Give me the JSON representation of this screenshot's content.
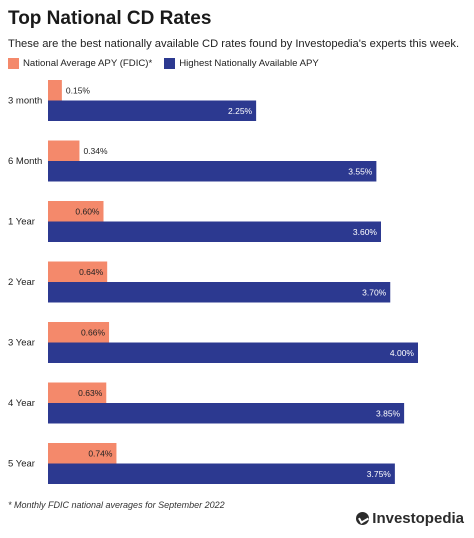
{
  "header": {
    "title": "Top National CD Rates",
    "subtitle": "These are the best nationally available CD rates found by Investopedia's experts this week."
  },
  "legend": {
    "items": [
      {
        "label": "National Average APY (FDIC)*",
        "color": "#f4896b"
      },
      {
        "label": "Highest Nationally Available APY",
        "color": "#2c3990"
      }
    ]
  },
  "chart_data": {
    "type": "bar",
    "orientation": "horizontal",
    "categories": [
      "3 month",
      "6 Month",
      "1 Year",
      "2 Year",
      "3 Year",
      "4 Year",
      "5 Year"
    ],
    "series": [
      {
        "name": "National Average APY (FDIC)*",
        "color": "#f4896b",
        "values": [
          0.15,
          0.34,
          0.6,
          0.64,
          0.66,
          0.63,
          0.74
        ],
        "labels": [
          "0.15%",
          "0.34%",
          "0.60%",
          "0.64%",
          "0.66%",
          "0.63%",
          "0.74%"
        ]
      },
      {
        "name": "Highest Nationally Available APY",
        "color": "#2c3990",
        "values": [
          2.25,
          3.55,
          3.6,
          3.7,
          4.0,
          3.85,
          3.75
        ],
        "labels": [
          "2.25%",
          "3.55%",
          "3.60%",
          "3.70%",
          "4.00%",
          "3.85%",
          "3.75%"
        ]
      }
    ],
    "xlim": [
      0,
      4.0
    ],
    "grid": false,
    "legend_position": "top-left"
  },
  "footnote": "* Monthly FDIC national averages for September 2022",
  "brand": {
    "name": "Investopedia"
  }
}
